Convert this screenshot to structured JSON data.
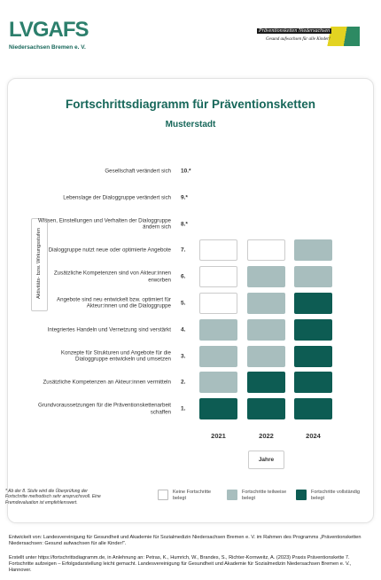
{
  "header": {
    "logo_left": "LVGAFS",
    "logo_left_sub": "Niedersachsen Bremen e. V.",
    "logo_right": "Präventionsketten Niedersachsen",
    "logo_right_sub": "Gesund aufwachsen für alle Kinder!"
  },
  "title": "Fortschrittsdiagramm für Präventionsketten",
  "subtitle": "Musterstadt",
  "axis_label": "Aktivitäts- bzw. Wirkungsstufen",
  "years": [
    "2021",
    "2022",
    "2024"
  ],
  "years_label": "Jahre",
  "levels": [
    {
      "number": "10.*",
      "label": "Gesellschaft verändert sich",
      "cells": []
    },
    {
      "number": "9.*",
      "label": "Lebenslage der Dialoggruppe verändert sich",
      "cells": []
    },
    {
      "number": "8.*",
      "label": "Wissen, Einstellungen und Verhalten der Dialoggruppe ändern sich",
      "cells": []
    },
    {
      "number": "7.",
      "label": "Dialoggruppe nutzt neue oder optimierte Angebote",
      "cells": [
        "empty",
        "empty",
        "partial"
      ]
    },
    {
      "number": "6.",
      "label": "Zusätzliche Kompetenzen sind von Akteur:innen erworben",
      "cells": [
        "empty",
        "partial",
        "partial"
      ]
    },
    {
      "number": "5.",
      "label": "Angebote sind neu entwickelt bzw. optimiert für Akteur:innen und die Dialoggruppe",
      "cells": [
        "empty",
        "partial",
        "full"
      ]
    },
    {
      "number": "4.",
      "label": "Integriertes Handeln und Vernetzung sind verstärkt",
      "cells": [
        "partial",
        "partial",
        "full"
      ]
    },
    {
      "number": "3.",
      "label": "Konzepte für Strukturen und Angebote für die Dialoggruppe entwickeln und umsetzen",
      "cells": [
        "partial",
        "partial",
        "full"
      ]
    },
    {
      "number": "2.",
      "label": "Zusätzliche Kompetenzen an Akteur:innen vermitteln",
      "cells": [
        "partial",
        "full",
        "full"
      ]
    },
    {
      "number": "1.",
      "label": "Grundvoraussetzungen für die Präventionskettenarbeit schaffen",
      "cells": [
        "full",
        "full",
        "full"
      ]
    }
  ],
  "legend": [
    {
      "state": "empty",
      "color": "#ffffff",
      "label": "Keine Fortschritte belegt"
    },
    {
      "state": "partial",
      "color": "#a8bebe",
      "label": "Fortschritte teilweise belegt"
    },
    {
      "state": "full",
      "color": "#0d5c53",
      "label": "Fortschritte vollständig belegt"
    }
  ],
  "footnote": "* Ab der 8. Stufe wird die Überprüfung der Fortschritte methodisch sehr anspruchsvoll. Eine Fremdevaluation ist empfehlenswert.",
  "credits": [
    "Entwickelt von: Landesvereinigung für Gesundheit und Akademie für Sozialmedizin Niedersachsen Bremen e. V. im Rahmen des Programms „Präventionsketten Niedersachsen: Gesund aufwachsen für alle Kinder!“.",
    "Erstellt unter https://fortschrittsdiagramm.de, in Anlehnung an: Petras, K., Humrich, W., Brandes, S., Richter-Kornweitz, A. (2023) Praxis Präventionskette 7. Fortschritte aufzeigen – Erfolgsdarstellung leicht gemacht. Landesvereinigung für Gesundheit und Akademie für Sozialmedizin Niedersachsen Bremen e. V., Hannover."
  ]
}
